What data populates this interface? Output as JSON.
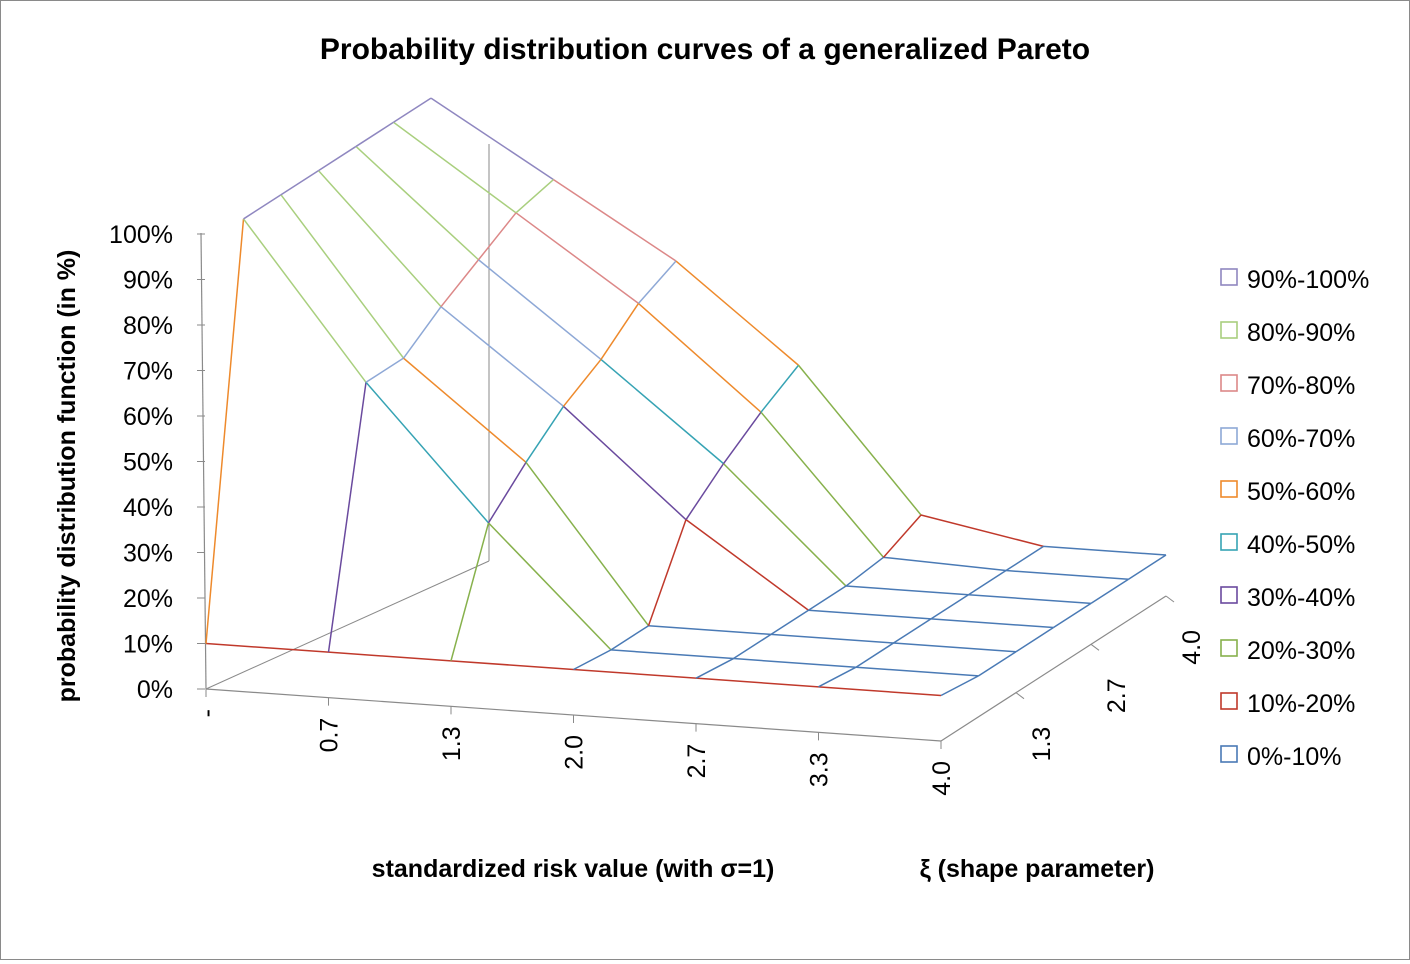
{
  "chart_data": {
    "type": "surface",
    "title": "Probability distribution curves of a generalized Pareto",
    "xlabel": "standardized risk value (with σ=1)",
    "ylabel": "probability distribution function (in %)",
    "zlabel": "ξ (shape parameter)",
    "x_ticks": [
      "-",
      "0.7",
      "1.3",
      "2.0",
      "2.7",
      "3.3",
      "4.0"
    ],
    "depth_ticks": [
      "1.3",
      "2.7",
      "4.0"
    ],
    "y_ticks": [
      "0%",
      "10%",
      "20%",
      "30%",
      "40%",
      "50%",
      "60%",
      "70%",
      "80%",
      "90%",
      "100%"
    ],
    "ylim": [
      0,
      100
    ],
    "x_values": [
      0,
      0.7,
      1.3,
      2.0,
      2.7,
      3.3,
      4.0
    ],
    "xi_values": [
      0,
      0.7,
      1.3,
      2.0,
      2.7,
      3.3,
      4.0
    ],
    "surface": [
      [
        10,
        98,
        98,
        98,
        98,
        98,
        98
      ],
      [
        10,
        64,
        64,
        70,
        75,
        80,
        82
      ],
      [
        10,
        35,
        43,
        50,
        55,
        62,
        66
      ],
      [
        10,
        9,
        9,
        27,
        34,
        40,
        45
      ],
      [
        10,
        9,
        9,
        9,
        9,
        10,
        14
      ],
      [
        10,
        9,
        9,
        9,
        9,
        9,
        9
      ],
      [
        10,
        9,
        9,
        9,
        9,
        9,
        9
      ]
    ],
    "legend": [
      "90%-100%",
      "80%-90%",
      "70%-80%",
      "60%-70%",
      "50%-60%",
      "40%-50%",
      "30%-40%",
      "20%-30%",
      "10%-20%",
      "0%-10%"
    ],
    "band_colors": [
      "#8f87c0",
      "#a9cf7e",
      "#dc8888",
      "#8ea8d6",
      "#ee8a2c",
      "#36a3b4",
      "#6a4a9e",
      "#87b14c",
      "#c0392b",
      "#4a7ab5"
    ],
    "legend_position": "right",
    "grid": true
  }
}
